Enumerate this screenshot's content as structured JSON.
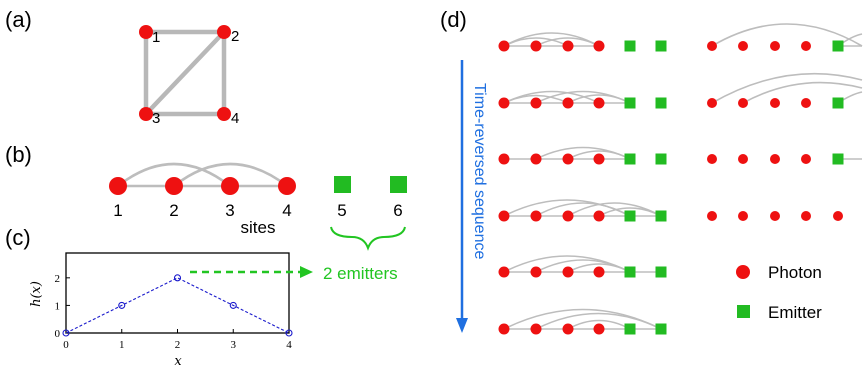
{
  "colors": {
    "photon": "#ee1111",
    "emitter": "#22bb22",
    "arrow_green": "#22c522",
    "time_arrow": "#1f6fe0",
    "plot_line": "#1a1acc"
  },
  "panel_a": {
    "label": "(a)",
    "nodes": [
      {
        "id": "1"
      },
      {
        "id": "2"
      },
      {
        "id": "3"
      },
      {
        "id": "4"
      }
    ],
    "edges": [
      [
        "1",
        "2"
      ],
      [
        "1",
        "3"
      ],
      [
        "2",
        "3"
      ],
      [
        "2",
        "4"
      ],
      [
        "3",
        "4"
      ]
    ]
  },
  "panel_b": {
    "label": "(b)",
    "site_numbers": [
      "1",
      "2",
      "3",
      "4",
      "5",
      "6"
    ],
    "sites_word": "sites",
    "photon_sites": 4,
    "emitter_sites": 2
  },
  "panel_c": {
    "label": "(c)",
    "emitters_text": "2 emitters",
    "chart_data": {
      "type": "line",
      "x": [
        0,
        1,
        2,
        3,
        4
      ],
      "y": [
        0,
        1,
        2,
        1,
        0
      ],
      "xlabel": "x",
      "ylabel": "h(x)",
      "xticks": [
        "0",
        "1",
        "2",
        "3",
        "4"
      ],
      "yticks": [
        "0",
        "1",
        "2"
      ],
      "xlim": [
        0,
        4
      ],
      "ylim": [
        0,
        2.9
      ],
      "marker": "open-circle",
      "linestyle": "dashed"
    }
  },
  "panel_d": {
    "label": "(d)",
    "time_label": "Time-reversed sequence",
    "legend": [
      {
        "name": "Photon",
        "icon": "circle"
      },
      {
        "name": "Emitter",
        "icon": "square"
      }
    ]
  }
}
